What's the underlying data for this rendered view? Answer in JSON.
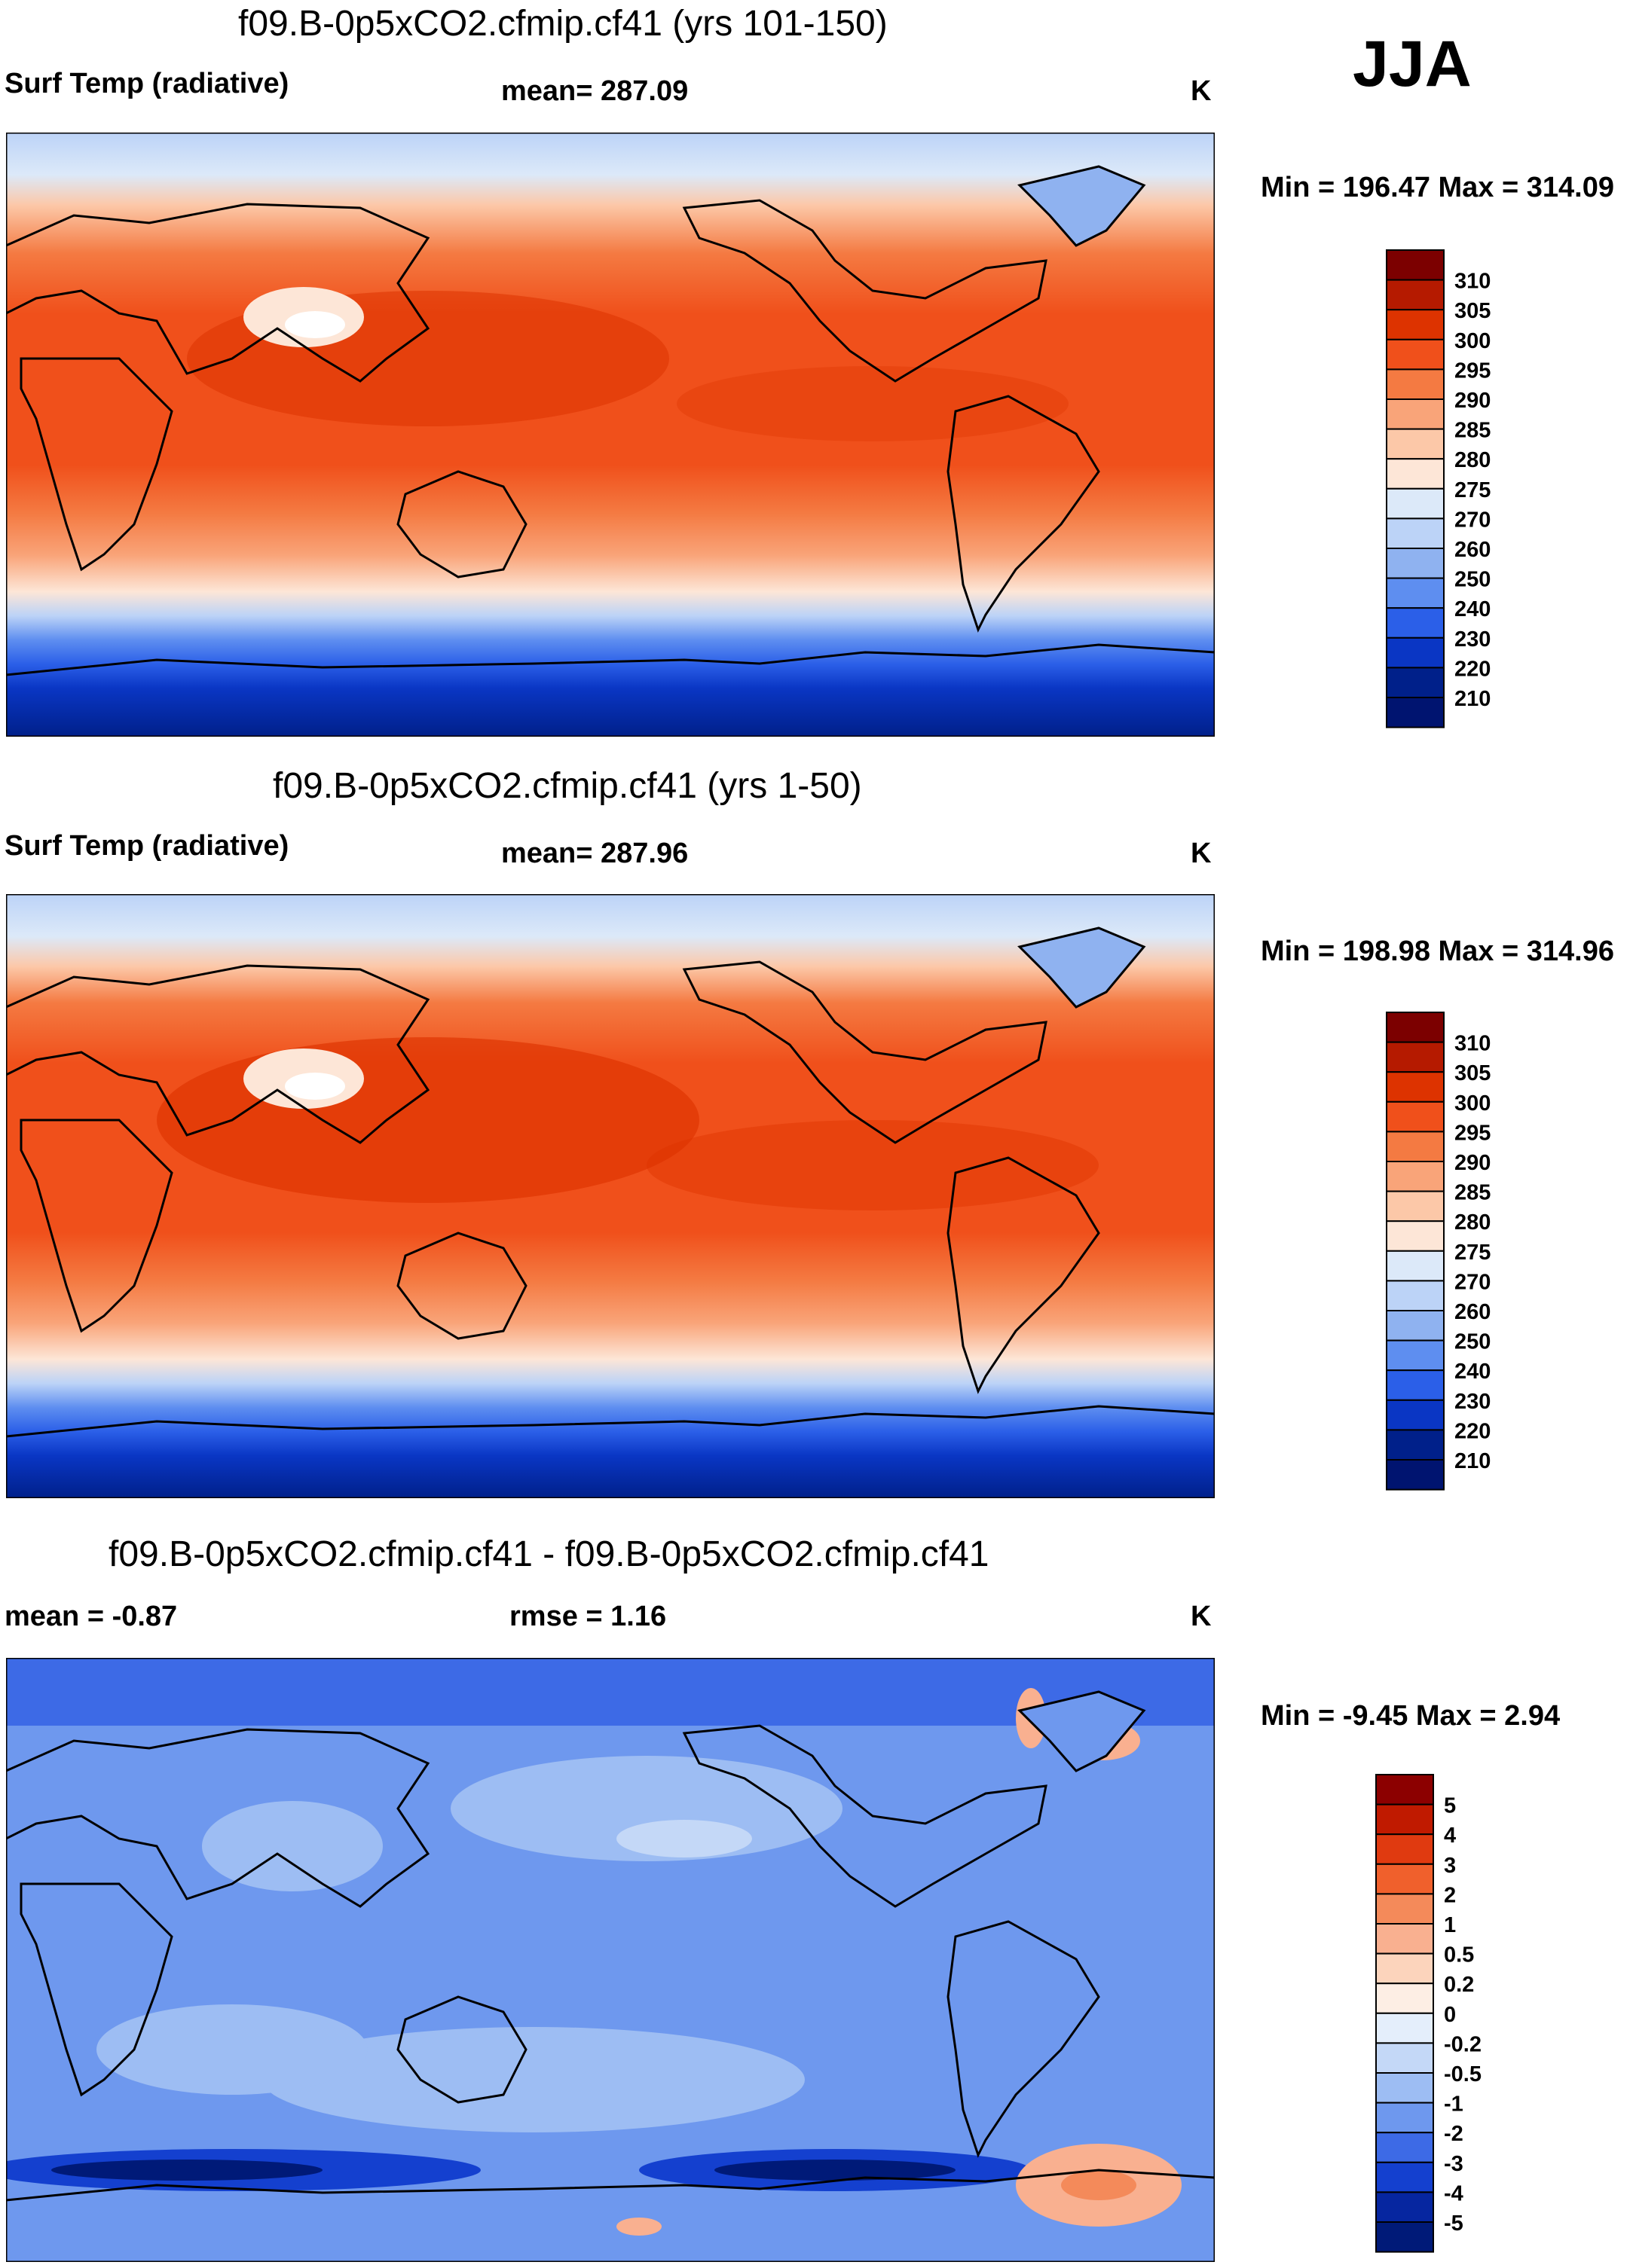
{
  "season": "JJA",
  "panels": [
    {
      "title": "f09.B-0p5xCO2.cfmip.cf41 (yrs 101-150)",
      "left_label": "Surf Temp (radiative)",
      "center_label": "mean= 287.09",
      "units": "K",
      "minmax": "Min = 196.47 Max = 314.09",
      "levels": [
        "310",
        "305",
        "300",
        "295",
        "290",
        "285",
        "280",
        "275",
        "270",
        "260",
        "250",
        "240",
        "230",
        "220",
        "210"
      ],
      "colors": [
        "#7c0000",
        "#b51a00",
        "#dd3300",
        "#f0501b",
        "#f47a42",
        "#f9a479",
        "#fcc8a8",
        "#fde6d7",
        "#dce9f9",
        "#bcd3f7",
        "#8fb2f0",
        "#5e8ef0",
        "#2b5fe8",
        "#0a36c4",
        "#00208a",
        "#001470"
      ]
    },
    {
      "title": "f09.B-0p5xCO2.cfmip.cf41 (yrs 1-50)",
      "left_label": "Surf Temp (radiative)",
      "center_label": "mean= 287.96",
      "units": "K",
      "minmax": "Min = 198.98 Max = 314.96",
      "levels": [
        "310",
        "305",
        "300",
        "295",
        "290",
        "285",
        "280",
        "275",
        "270",
        "260",
        "250",
        "240",
        "230",
        "220",
        "210"
      ],
      "colors": [
        "#7c0000",
        "#b51a00",
        "#dd3300",
        "#f0501b",
        "#f47a42",
        "#f9a479",
        "#fcc8a8",
        "#fde6d7",
        "#dce9f9",
        "#bcd3f7",
        "#8fb2f0",
        "#5e8ef0",
        "#2b5fe8",
        "#0a36c4",
        "#00208a",
        "#001470"
      ]
    },
    {
      "title": "f09.B-0p5xCO2.cfmip.cf41 - f09.B-0p5xCO2.cfmip.cf41",
      "left_label": "mean =  -0.87",
      "center_label": "rmse =   1.16",
      "units": "K",
      "minmax": "Min =  -9.45 Max =   2.94",
      "levels": [
        "5",
        "4",
        "3",
        "2",
        "1",
        "0.5",
        "0.2",
        "0",
        "-0.2",
        "-0.5",
        "-1",
        "-2",
        "-3",
        "-4",
        "-5"
      ],
      "colors": [
        "#8c0000",
        "#c01a00",
        "#e03a10",
        "#f0602c",
        "#f48a5a",
        "#f9b090",
        "#fcd4bc",
        "#fdeee4",
        "#e4eefb",
        "#c4d8f7",
        "#9dbdf3",
        "#6e98ee",
        "#3d6ae6",
        "#1440cf",
        "#0626a0",
        "#001a78"
      ]
    }
  ]
}
